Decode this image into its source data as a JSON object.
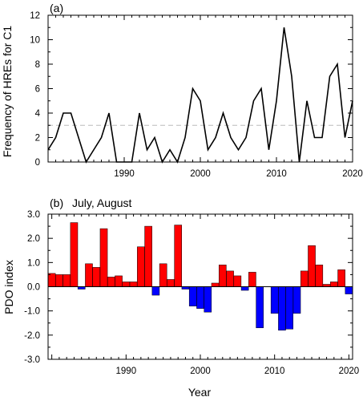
{
  "chart_data": [
    {
      "type": "line",
      "panel_label": "(a)",
      "title": "",
      "xlabel": "",
      "ylabel": "Frequency of HREs for C1",
      "xlim": [
        1980,
        2020
      ],
      "ylim": [
        0,
        12
      ],
      "xticks": [
        1990,
        2000,
        2010,
        2020
      ],
      "yticks": [
        0,
        2,
        4,
        6,
        8,
        10,
        12
      ],
      "xtick_labels": [
        "1990",
        "2000",
        "2010",
        "2020"
      ],
      "ytick_labels": [
        "0",
        "2",
        "4",
        "6",
        "8",
        "10",
        "12"
      ],
      "reference_line": {
        "y": 3,
        "style": "dashed",
        "color": "#bbbbbb"
      },
      "series": [
        {
          "color": "#000000",
          "x": [
            1980,
            1981,
            1982,
            1983,
            1984,
            1985,
            1986,
            1987,
            1988,
            1989,
            1990,
            1991,
            1992,
            1993,
            1994,
            1995,
            1996,
            1997,
            1998,
            1999,
            2000,
            2001,
            2002,
            2003,
            2004,
            2005,
            2006,
            2007,
            2008,
            2009,
            2010,
            2011,
            2012,
            2013,
            2014,
            2015,
            2016,
            2017,
            2018,
            2019,
            2020
          ],
          "values": [
            1,
            2,
            4,
            4,
            2,
            0,
            1,
            2,
            4,
            0,
            0,
            0,
            4,
            1,
            2,
            0,
            1,
            0,
            2,
            6,
            5,
            1,
            2,
            4,
            2,
            1,
            2,
            5,
            6,
            1,
            5,
            11,
            7,
            0,
            5,
            2,
            2,
            7,
            8,
            2,
            5
          ]
        }
      ]
    },
    {
      "type": "bar",
      "panel_label": "(b)",
      "title": "July, August",
      "xlabel": "Year",
      "ylabel": "PDO index",
      "xlim": [
        1980,
        2020
      ],
      "ylim": [
        -3.0,
        3.0
      ],
      "xticks": [
        1990,
        2000,
        2010,
        2020
      ],
      "yticks": [
        -3.0,
        -2.0,
        -1.0,
        0.0,
        1.0,
        2.0,
        3.0
      ],
      "xtick_labels": [
        "1990",
        "2000",
        "2010",
        "2020"
      ],
      "ytick_labels": [
        "-3.0",
        "-2.0",
        "-1.0",
        "0.0",
        "1.0",
        "2.0",
        "3.0"
      ],
      "positive_color": "#ff0000",
      "negative_color": "#0000ff",
      "x": [
        1980,
        1981,
        1982,
        1983,
        1984,
        1985,
        1986,
        1987,
        1988,
        1989,
        1990,
        1991,
        1992,
        1993,
        1994,
        1995,
        1996,
        1997,
        1998,
        1999,
        2000,
        2001,
        2002,
        2003,
        2004,
        2005,
        2006,
        2007,
        2008,
        2009,
        2010,
        2011,
        2012,
        2013,
        2014,
        2015,
        2016,
        2017,
        2018,
        2019,
        2020
      ],
      "values": [
        0.55,
        0.5,
        0.5,
        2.65,
        -0.1,
        0.95,
        0.8,
        2.4,
        0.4,
        0.45,
        0.2,
        0.2,
        1.65,
        2.5,
        -0.35,
        0.95,
        0.3,
        2.55,
        -0.1,
        -0.8,
        -0.9,
        -1.05,
        0.15,
        0.9,
        0.65,
        0.45,
        -0.15,
        0.6,
        -1.7,
        0.0,
        -1.1,
        -1.8,
        -1.75,
        -1.1,
        0.65,
        1.7,
        0.9,
        0.1,
        0.2,
        0.7,
        -0.3
      ]
    }
  ]
}
